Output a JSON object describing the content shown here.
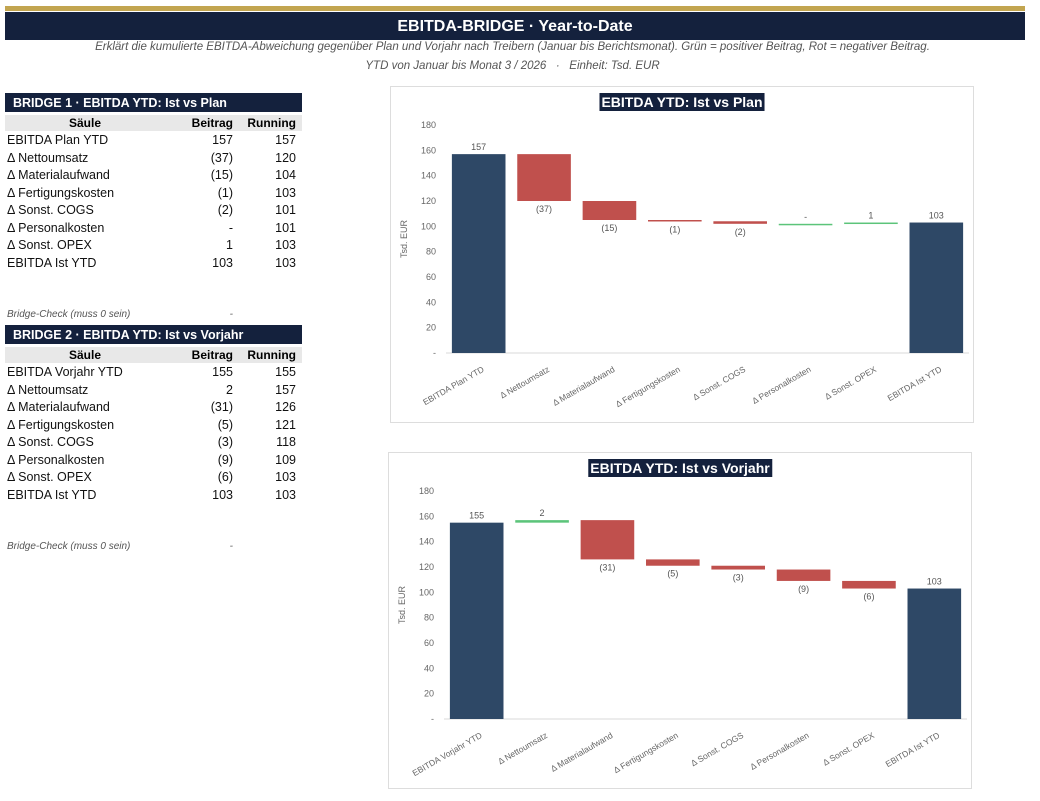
{
  "header": {
    "title": "EBITDA-BRIDGE  ·  Year-to-Date",
    "subtitle_lines": [
      "Erklärt die kumulierte EBITDA-Abweichung gegenüber Plan und Vorjahr nach Treibern (Januar bis Berichtsmonat). Grün = positiver Beitrag, Rot = negativer Beitrag.",
      "YTD von Januar bis Monat 3 / 2026   ·   Einheit: Tsd. EUR"
    ]
  },
  "bridges": [
    {
      "title": "BRIDGE 1  ·  EBITDA YTD: Ist vs Plan",
      "columns": [
        "Säule",
        "Beitrag",
        "Running"
      ],
      "rows": [
        [
          "EBITDA Plan YTD",
          "157",
          "157"
        ],
        [
          "Δ Nettoumsatz",
          "(37)",
          "120"
        ],
        [
          "Δ Materialaufwand",
          "(15)",
          "104"
        ],
        [
          "Δ Fertigungskosten",
          "(1)",
          "103"
        ],
        [
          "Δ Sonst. COGS",
          "(2)",
          "101"
        ],
        [
          "Δ Personalkosten",
          "-",
          "101"
        ],
        [
          "Δ Sonst. OPEX",
          "1",
          "103"
        ],
        [
          "EBITDA Ist YTD",
          "103",
          "103"
        ]
      ],
      "check_label": "Bridge-Check (muss 0 sein)",
      "check_value": "-"
    },
    {
      "title": "BRIDGE 2  ·  EBITDA YTD: Ist vs Vorjahr",
      "columns": [
        "Säule",
        "Beitrag",
        "Running"
      ],
      "rows": [
        [
          "EBITDA Vorjahr YTD",
          "155",
          "155"
        ],
        [
          "Δ Nettoumsatz",
          "2",
          "157"
        ],
        [
          "Δ Materialaufwand",
          "(31)",
          "126"
        ],
        [
          "Δ Fertigungskosten",
          "(5)",
          "121"
        ],
        [
          "Δ Sonst. COGS",
          "(3)",
          "118"
        ],
        [
          "Δ Personalkosten",
          "(9)",
          "109"
        ],
        [
          "Δ Sonst. OPEX",
          "(6)",
          "103"
        ],
        [
          "EBITDA Ist YTD",
          "103",
          "103"
        ]
      ],
      "check_label": "Bridge-Check (muss 0 sein)",
      "check_value": "-"
    }
  ],
  "chart_data": [
    {
      "type": "waterfall",
      "title": "EBITDA YTD: Ist vs Plan",
      "y_label": "Tsd. EUR",
      "categories": [
        "EBITDA Plan YTD",
        "Δ Nettoumsatz",
        "Δ Materialaufwand",
        "Δ Fertigungskosten",
        "Δ Sonst. COGS",
        "Δ Personalkosten",
        "Δ Sonst. OPEX",
        "EBITDA Ist YTD"
      ],
      "values": [
        157,
        -37,
        -15,
        -1,
        -2,
        0,
        1,
        103
      ],
      "value_labels": [
        "157",
        "(37)",
        "(15)",
        "(1)",
        "(2)",
        "-",
        "1",
        "103"
      ],
      "is_total": [
        true,
        false,
        false,
        false,
        false,
        false,
        false,
        true
      ],
      "total_color": "#2e4866",
      "increase_color": "#5cc47a",
      "decrease_color": "#c0504d",
      "ylim": [
        0,
        180
      ],
      "yticks": [
        {
          "value": 0,
          "label": "-"
        },
        20,
        40,
        60,
        80,
        100,
        120,
        140,
        160,
        180
      ]
    },
    {
      "type": "waterfall",
      "title": "EBITDA YTD: Ist vs Vorjahr",
      "y_label": "Tsd. EUR",
      "categories": [
        "EBITDA Vorjahr YTD",
        "Δ Nettoumsatz",
        "Δ Materialaufwand",
        "Δ Fertigungskosten",
        "Δ Sonst. COGS",
        "Δ Personalkosten",
        "Δ Sonst. OPEX",
        "EBITDA Ist YTD"
      ],
      "values": [
        155,
        2,
        -31,
        -5,
        -3,
        -9,
        -6,
        103
      ],
      "value_labels": [
        "155",
        "2",
        "(31)",
        "(5)",
        "(3)",
        "(9)",
        "(6)",
        "103"
      ],
      "is_total": [
        true,
        false,
        false,
        false,
        false,
        false,
        false,
        true
      ],
      "total_color": "#2e4866",
      "increase_color": "#5cc47a",
      "decrease_color": "#c0504d",
      "ylim": [
        0,
        180
      ],
      "yticks": [
        {
          "value": 0,
          "label": "-"
        },
        20,
        40,
        60,
        80,
        100,
        120,
        140,
        160,
        180
      ]
    }
  ]
}
